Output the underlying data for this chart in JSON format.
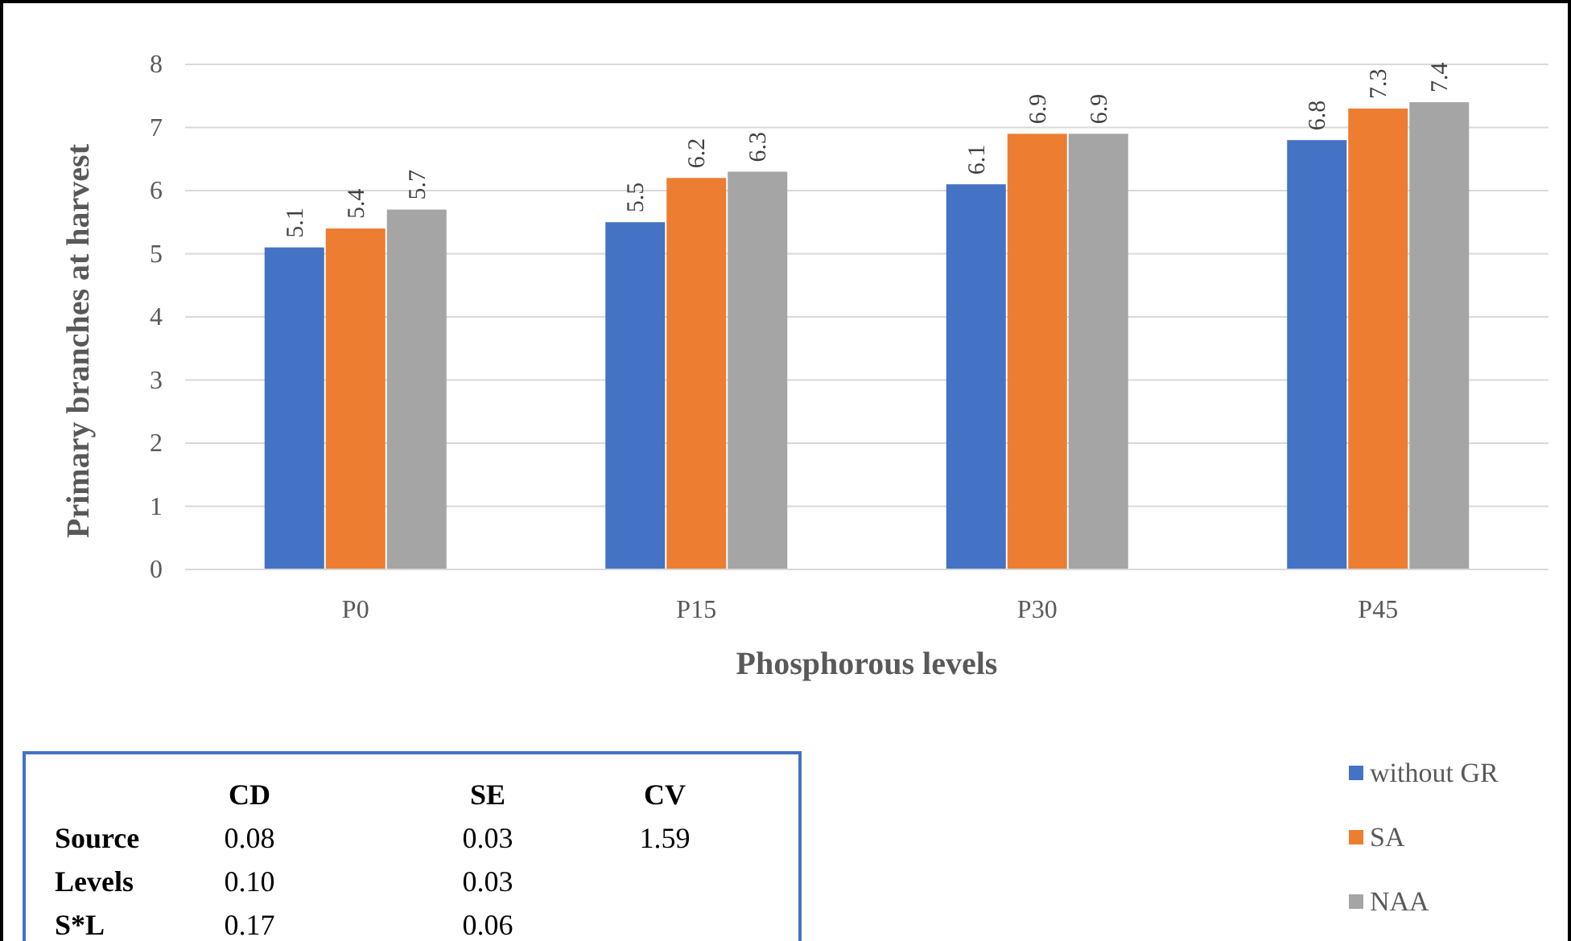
{
  "chart_data": {
    "type": "bar",
    "xlabel": "Phosphorous levels",
    "ylabel": "Primary branches at harvest",
    "categories": [
      "P0",
      "P15",
      "P30",
      "P45"
    ],
    "series": [
      {
        "name": "without GR",
        "color": "#4472c4",
        "values": [
          5.1,
          5.5,
          6.1,
          6.8
        ]
      },
      {
        "name": "SA",
        "color": "#ed7d31",
        "values": [
          5.4,
          6.2,
          6.9,
          7.3
        ]
      },
      {
        "name": "NAA",
        "color": "#a5a5a5",
        "values": [
          5.7,
          6.3,
          6.9,
          7.4
        ]
      }
    ],
    "ylim": [
      0,
      8
    ],
    "yticks": [
      0,
      1,
      2,
      3,
      4,
      5,
      6,
      7,
      8
    ],
    "grid": "y",
    "data_labels": true,
    "legend": "bottom right",
    "annotations": [
      "\tCD\tSE\tCV",
      "Source\t0.08\t0.03\t1.59",
      "Levels\t0.10\t0.03",
      "S*L\t0.17\t0.06"
    ]
  }
}
